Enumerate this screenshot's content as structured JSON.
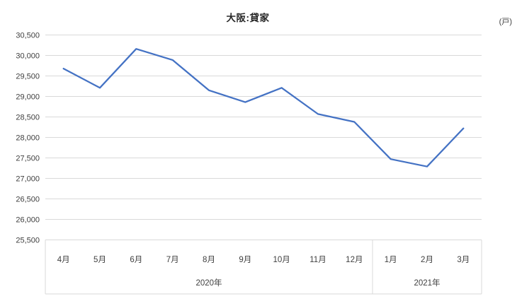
{
  "chart": {
    "title": "大阪:貸家",
    "unit": "(戸)"
  },
  "chart_data": {
    "type": "line",
    "title": "大阪:貸家",
    "unit_label": "(戸)",
    "categories": [
      "4月",
      "5月",
      "6月",
      "7月",
      "8月",
      "9月",
      "10月",
      "11月",
      "12月",
      "1月",
      "2月",
      "3月"
    ],
    "series": [
      {
        "name": "大阪:貸家",
        "values": [
          29680,
          29210,
          30160,
          29890,
          29150,
          28860,
          29210,
          28570,
          28380,
          27470,
          27290,
          28220
        ]
      }
    ],
    "year_groups": [
      {
        "label": "2020年",
        "count": 9
      },
      {
        "label": "2021年",
        "count": 3
      }
    ],
    "xlabel": "",
    "ylabel": "",
    "ylim": [
      25500,
      30500
    ],
    "ytick_step": 500,
    "grid": true,
    "legend": "none",
    "colors": {
      "line": "#4472C4",
      "gridline": "#D9D9D9",
      "axis_border": "#D9D9D9",
      "text": "#404040",
      "title_text": "#262626"
    }
  }
}
